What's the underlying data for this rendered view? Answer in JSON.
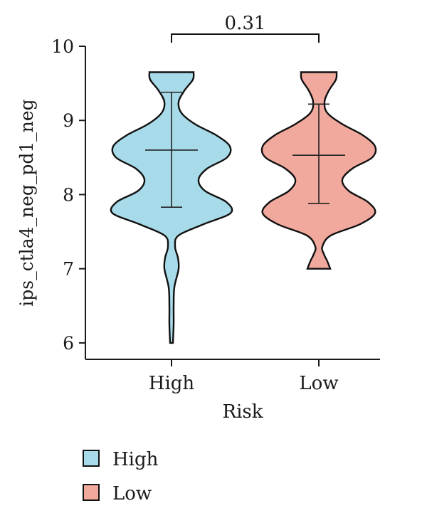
{
  "chart_data": {
    "type": "violin",
    "xlabel": "Risk",
    "ylabel": "ips_ctla4_neg_pd1_neg",
    "categories": [
      "High",
      "Low"
    ],
    "yticks": [
      6,
      7,
      8,
      9,
      10
    ],
    "ylim": [
      5.98,
      10
    ],
    "grid": false,
    "significance": {
      "label": "0.31",
      "between": [
        "High",
        "Low"
      ]
    },
    "series": [
      {
        "name": "High",
        "color": "#a8dbe9",
        "mean": 8.6,
        "sd_low": 7.83,
        "sd_high": 9.38,
        "profile": [
          [
            6.0,
            0.02
          ],
          [
            6.25,
            0.03
          ],
          [
            6.5,
            0.03
          ],
          [
            6.75,
            0.04
          ],
          [
            7.0,
            0.1
          ],
          [
            7.15,
            0.09
          ],
          [
            7.3,
            0.05
          ],
          [
            7.45,
            0.1
          ],
          [
            7.6,
            0.45
          ],
          [
            7.75,
            0.83
          ],
          [
            7.9,
            0.77
          ],
          [
            8.05,
            0.47
          ],
          [
            8.2,
            0.38
          ],
          [
            8.35,
            0.5
          ],
          [
            8.5,
            0.78
          ],
          [
            8.65,
            0.82
          ],
          [
            8.8,
            0.63
          ],
          [
            8.95,
            0.33
          ],
          [
            9.1,
            0.14
          ],
          [
            9.25,
            0.1
          ],
          [
            9.4,
            0.18
          ],
          [
            9.55,
            0.3
          ],
          [
            9.65,
            0.31
          ]
        ]
      },
      {
        "name": "Low",
        "color": "#f2a99d",
        "mean": 8.53,
        "sd_low": 7.88,
        "sd_high": 9.22,
        "profile": [
          [
            7.0,
            0.16
          ],
          [
            7.1,
            0.12
          ],
          [
            7.2,
            0.07
          ],
          [
            7.3,
            0.05
          ],
          [
            7.45,
            0.17
          ],
          [
            7.6,
            0.58
          ],
          [
            7.75,
            0.79
          ],
          [
            7.9,
            0.69
          ],
          [
            8.05,
            0.42
          ],
          [
            8.2,
            0.33
          ],
          [
            8.35,
            0.47
          ],
          [
            8.5,
            0.75
          ],
          [
            8.65,
            0.79
          ],
          [
            8.8,
            0.62
          ],
          [
            8.95,
            0.33
          ],
          [
            9.1,
            0.12
          ],
          [
            9.25,
            0.08
          ],
          [
            9.4,
            0.14
          ],
          [
            9.55,
            0.24
          ],
          [
            9.65,
            0.25
          ]
        ]
      }
    ],
    "legend": {
      "position": "bottom-left",
      "entries": [
        "High",
        "Low"
      ]
    }
  }
}
